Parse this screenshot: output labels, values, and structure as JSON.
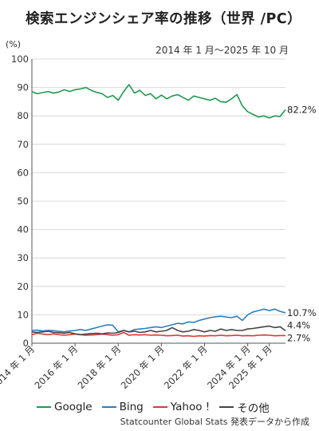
{
  "chart_data": {
    "type": "line",
    "title": "検索エンジンシェア率の推移（世界 /PC）",
    "period": "2014 年 1 月〜2025 年 10 月",
    "unit": "(%)",
    "ylim": [
      0,
      100
    ],
    "yticks": [
      0,
      10,
      20,
      30,
      40,
      50,
      60,
      70,
      80,
      90,
      100
    ],
    "xlim": [
      "2014-01",
      "2025-10"
    ],
    "xticks": [
      {
        "x": "2014-01",
        "label": "2014 年 1 月"
      },
      {
        "x": "2016-01",
        "label": "2016 年 1 月"
      },
      {
        "x": "2018-01",
        "label": "2018 年 1 月"
      },
      {
        "x": "2020-01",
        "label": "2020 年 1 月"
      },
      {
        "x": "2022-01",
        "label": "2022 年 1 月"
      },
      {
        "x": "2024-01",
        "label": "2024 年 1 月"
      },
      {
        "x": "2025-01",
        "label": "2025 年 1 月"
      }
    ],
    "grid": true,
    "legend_position": "bottom",
    "source": "Statcounter Global Stats 発表データから作成",
    "series": [
      {
        "name": "Google",
        "color": "#1e9a4e",
        "end_label": "82.2%",
        "points": [
          [
            "2014-01",
            88.5
          ],
          [
            "2014-04",
            87.8
          ],
          [
            "2014-07",
            88.2
          ],
          [
            "2014-10",
            88.6
          ],
          [
            "2015-01",
            88.0
          ],
          [
            "2015-04",
            88.4
          ],
          [
            "2015-07",
            89.2
          ],
          [
            "2015-10",
            88.6
          ],
          [
            "2016-01",
            89.2
          ],
          [
            "2016-04",
            89.5
          ],
          [
            "2016-07",
            90.0
          ],
          [
            "2016-10",
            89.0
          ],
          [
            "2017-01",
            88.3
          ],
          [
            "2017-04",
            87.8
          ],
          [
            "2017-07",
            86.5
          ],
          [
            "2017-10",
            87.2
          ],
          [
            "2018-01",
            85.5
          ],
          [
            "2018-04",
            88.5
          ],
          [
            "2018-07",
            91.0
          ],
          [
            "2018-10",
            88.0
          ],
          [
            "2019-01",
            89.0
          ],
          [
            "2019-04",
            87.2
          ],
          [
            "2019-07",
            87.8
          ],
          [
            "2019-10",
            86.0
          ],
          [
            "2020-01",
            87.3
          ],
          [
            "2020-04",
            86.0
          ],
          [
            "2020-07",
            87.0
          ],
          [
            "2020-10",
            87.5
          ],
          [
            "2021-01",
            86.5
          ],
          [
            "2021-04",
            85.5
          ],
          [
            "2021-07",
            87.0
          ],
          [
            "2021-10",
            86.5
          ],
          [
            "2022-01",
            86.0
          ],
          [
            "2022-04",
            85.5
          ],
          [
            "2022-07",
            86.2
          ],
          [
            "2022-10",
            85.0
          ],
          [
            "2023-01",
            84.8
          ],
          [
            "2023-04",
            86.0
          ],
          [
            "2023-07",
            87.5
          ],
          [
            "2023-10",
            83.5
          ],
          [
            "2024-01",
            81.5
          ],
          [
            "2024-04",
            80.5
          ],
          [
            "2024-07",
            79.6
          ],
          [
            "2024-10",
            80.0
          ],
          [
            "2025-01",
            79.3
          ],
          [
            "2025-04",
            80.0
          ],
          [
            "2025-07",
            79.8
          ],
          [
            "2025-10",
            82.2
          ]
        ]
      },
      {
        "name": "Bing",
        "color": "#2a7fc1",
        "end_label": "10.7%",
        "points": [
          [
            "2014-01",
            4.5
          ],
          [
            "2014-04",
            4.6
          ],
          [
            "2014-07",
            4.3
          ],
          [
            "2014-10",
            4.5
          ],
          [
            "2015-01",
            4.4
          ],
          [
            "2015-04",
            4.2
          ],
          [
            "2015-07",
            4.0
          ],
          [
            "2015-10",
            4.3
          ],
          [
            "2016-01",
            4.5
          ],
          [
            "2016-04",
            4.8
          ],
          [
            "2016-07",
            4.5
          ],
          [
            "2016-10",
            5.0
          ],
          [
            "2017-01",
            5.5
          ],
          [
            "2017-04",
            6.0
          ],
          [
            "2017-07",
            6.5
          ],
          [
            "2017-10",
            6.3
          ],
          [
            "2018-01",
            4.0
          ],
          [
            "2018-04",
            4.5
          ],
          [
            "2018-07",
            4.0
          ],
          [
            "2018-10",
            4.8
          ],
          [
            "2019-01",
            5.0
          ],
          [
            "2019-04",
            5.2
          ],
          [
            "2019-07",
            5.5
          ],
          [
            "2019-10",
            5.8
          ],
          [
            "2020-01",
            5.5
          ],
          [
            "2020-04",
            6.0
          ],
          [
            "2020-07",
            6.5
          ],
          [
            "2020-10",
            7.0
          ],
          [
            "2021-01",
            6.8
          ],
          [
            "2021-04",
            7.5
          ],
          [
            "2021-07",
            7.3
          ],
          [
            "2021-10",
            8.0
          ],
          [
            "2022-01",
            8.5
          ],
          [
            "2022-04",
            9.0
          ],
          [
            "2022-07",
            9.3
          ],
          [
            "2022-10",
            9.5
          ],
          [
            "2023-01",
            9.2
          ],
          [
            "2023-04",
            9.0
          ],
          [
            "2023-07",
            9.5
          ],
          [
            "2023-10",
            8.0
          ],
          [
            "2024-01",
            10.0
          ],
          [
            "2024-04",
            11.0
          ],
          [
            "2024-07",
            11.5
          ],
          [
            "2024-10",
            12.0
          ],
          [
            "2025-01",
            11.5
          ],
          [
            "2025-04",
            12.0
          ],
          [
            "2025-07",
            11.2
          ],
          [
            "2025-10",
            10.7
          ]
        ]
      },
      {
        "name": "Yahoo !",
        "color": "#d9383a",
        "end_label": "2.7%",
        "points": [
          [
            "2014-01",
            3.0
          ],
          [
            "2014-04",
            3.5
          ],
          [
            "2014-07",
            3.2
          ],
          [
            "2014-10",
            3.0
          ],
          [
            "2015-01",
            3.3
          ],
          [
            "2015-04",
            3.0
          ],
          [
            "2015-07",
            2.8
          ],
          [
            "2015-10",
            3.0
          ],
          [
            "2016-01",
            3.2
          ],
          [
            "2016-04",
            3.0
          ],
          [
            "2016-07",
            2.8
          ],
          [
            "2016-10",
            2.9
          ],
          [
            "2017-01",
            3.0
          ],
          [
            "2017-04",
            3.2
          ],
          [
            "2017-07",
            3.0
          ],
          [
            "2017-10",
            2.8
          ],
          [
            "2018-01",
            3.0
          ],
          [
            "2018-04",
            3.8
          ],
          [
            "2018-07",
            2.8
          ],
          [
            "2018-10",
            3.0
          ],
          [
            "2019-01",
            2.9
          ],
          [
            "2019-04",
            3.0
          ],
          [
            "2019-07",
            2.8
          ],
          [
            "2019-10",
            2.9
          ],
          [
            "2020-01",
            2.8
          ],
          [
            "2020-04",
            2.6
          ],
          [
            "2020-07",
            2.7
          ],
          [
            "2020-10",
            2.8
          ],
          [
            "2021-01",
            2.5
          ],
          [
            "2021-04",
            2.6
          ],
          [
            "2021-07",
            2.4
          ],
          [
            "2021-10",
            2.6
          ],
          [
            "2022-01",
            2.5
          ],
          [
            "2022-04",
            2.7
          ],
          [
            "2022-07",
            2.6
          ],
          [
            "2022-10",
            2.8
          ],
          [
            "2023-01",
            2.6
          ],
          [
            "2023-04",
            2.7
          ],
          [
            "2023-07",
            2.8
          ],
          [
            "2023-10",
            2.6
          ],
          [
            "2024-01",
            2.7
          ],
          [
            "2024-04",
            2.6
          ],
          [
            "2024-07",
            2.8
          ],
          [
            "2024-10",
            2.9
          ],
          [
            "2025-01",
            2.8
          ],
          [
            "2025-04",
            2.6
          ],
          [
            "2025-07",
            2.7
          ],
          [
            "2025-10",
            2.7
          ]
        ]
      },
      {
        "name": "その他",
        "color": "#444444",
        "end_label": "4.4%",
        "points": [
          [
            "2014-01",
            4.0
          ],
          [
            "2014-04",
            3.8
          ],
          [
            "2014-07",
            4.0
          ],
          [
            "2014-10",
            4.2
          ],
          [
            "2015-01",
            3.8
          ],
          [
            "2015-04",
            3.7
          ],
          [
            "2015-07",
            3.5
          ],
          [
            "2015-10",
            3.8
          ],
          [
            "2016-01",
            3.3
          ],
          [
            "2016-04",
            3.0
          ],
          [
            "2016-07",
            3.2
          ],
          [
            "2016-10",
            3.4
          ],
          [
            "2017-01",
            3.5
          ],
          [
            "2017-04",
            3.3
          ],
          [
            "2017-07",
            3.6
          ],
          [
            "2017-10",
            3.5
          ],
          [
            "2018-01",
            3.8
          ],
          [
            "2018-04",
            4.5
          ],
          [
            "2018-07",
            4.0
          ],
          [
            "2018-10",
            4.2
          ],
          [
            "2019-01",
            3.8
          ],
          [
            "2019-04",
            4.0
          ],
          [
            "2019-07",
            4.5
          ],
          [
            "2019-10",
            4.0
          ],
          [
            "2020-01",
            4.2
          ],
          [
            "2020-04",
            4.5
          ],
          [
            "2020-07",
            5.5
          ],
          [
            "2020-10",
            4.5
          ],
          [
            "2021-01",
            4.0
          ],
          [
            "2021-04",
            4.2
          ],
          [
            "2021-07",
            4.8
          ],
          [
            "2021-10",
            4.5
          ],
          [
            "2022-01",
            4.0
          ],
          [
            "2022-04",
            4.5
          ],
          [
            "2022-07",
            4.2
          ],
          [
            "2022-10",
            5.0
          ],
          [
            "2023-01",
            4.5
          ],
          [
            "2023-04",
            4.8
          ],
          [
            "2023-07",
            4.5
          ],
          [
            "2023-10",
            4.5
          ],
          [
            "2024-01",
            5.0
          ],
          [
            "2024-04",
            5.2
          ],
          [
            "2024-07",
            5.5
          ],
          [
            "2024-10",
            5.8
          ],
          [
            "2025-01",
            6.0
          ],
          [
            "2025-04",
            5.5
          ],
          [
            "2025-07",
            5.8
          ],
          [
            "2025-10",
            4.4
          ]
        ]
      }
    ]
  }
}
